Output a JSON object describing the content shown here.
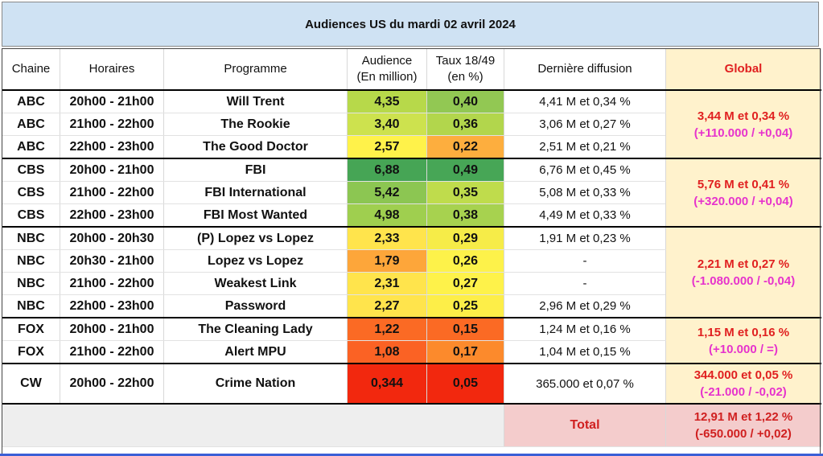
{
  "title": "Audiences US du mardi 02 avril 2024",
  "headers": {
    "chaine": "Chaine",
    "horaires": "Horaires",
    "programme": "Programme",
    "audience_l1": "Audience",
    "audience_l2": "(En million)",
    "taux_l1": "Taux 18/49",
    "taux_l2": "(en %)",
    "derniere": "Dernière diffusion",
    "global": "Global"
  },
  "rows": [
    {
      "chaine": "ABC",
      "horaires": "20h00 - 21h00",
      "programme": "Will Trent",
      "audience": "4,35",
      "taux": "0,40",
      "derniere": "4,41 M et 0,34 %"
    },
    {
      "chaine": "ABC",
      "horaires": "21h00 - 22h00",
      "programme": "The Rookie",
      "audience": "3,40",
      "taux": "0,36",
      "derniere": "3,06 M et 0,27 %"
    },
    {
      "chaine": "ABC",
      "horaires": "22h00 - 23h00",
      "programme": "The Good Doctor",
      "audience": "2,57",
      "taux": "0,22",
      "derniere": "2,51 M et 0,21 %"
    },
    {
      "chaine": "CBS",
      "horaires": "20h00 - 21h00",
      "programme": "FBI",
      "audience": "6,88",
      "taux": "0,49",
      "derniere": "6,76 M et 0,45 %"
    },
    {
      "chaine": "CBS",
      "horaires": "21h00 - 22h00",
      "programme": "FBI International",
      "audience": "5,42",
      "taux": "0,35",
      "derniere": "5,08 M et 0,33 %"
    },
    {
      "chaine": "CBS",
      "horaires": "22h00 - 23h00",
      "programme": "FBI Most Wanted",
      "audience": "4,98",
      "taux": "0,38",
      "derniere": "4,49 M et 0,33 %"
    },
    {
      "chaine": "NBC",
      "horaires": "20h00 - 20h30",
      "programme": "(P) Lopez vs Lopez",
      "audience": "2,33",
      "taux": "0,29",
      "derniere": "1,91 M et 0,23 %"
    },
    {
      "chaine": "NBC",
      "horaires": "20h30 - 21h00",
      "programme": "Lopez vs Lopez",
      "audience": "1,79",
      "taux": "0,26",
      "derniere": "-"
    },
    {
      "chaine": "NBC",
      "horaires": "21h00 - 22h00",
      "programme": "Weakest Link",
      "audience": "2,31",
      "taux": "0,27",
      "derniere": "-"
    },
    {
      "chaine": "NBC",
      "horaires": "22h00 - 23h00",
      "programme": "Password",
      "audience": "2,27",
      "taux": "0,25",
      "derniere": "2,96 M et 0,29 %"
    },
    {
      "chaine": "FOX",
      "horaires": "20h00 - 21h00",
      "programme": "The Cleaning Lady",
      "audience": "1,22",
      "taux": "0,15",
      "derniere": "1,24 M et 0,16 %"
    },
    {
      "chaine": "FOX",
      "horaires": "21h00 - 22h00",
      "programme": "Alert MPU",
      "audience": "1,08",
      "taux": "0,17",
      "derniere": "1,04 M et 0,15 %"
    },
    {
      "chaine": "CW",
      "horaires": "20h00 - 22h00",
      "programme": "Crime Nation",
      "audience": "0,344",
      "taux": "0,05",
      "derniere": "365.000 et 0,07 %"
    }
  ],
  "global": [
    {
      "main": "3,44 M et 0,34 %",
      "diff": "(+110.000 / +0,04)"
    },
    {
      "main": "5,76 M et 0,41 %",
      "diff": "(+320.000 / +0,04)"
    },
    {
      "main": "2,21 M et 0,27 %",
      "diff": "(-1.080.000 / -0,04)"
    },
    {
      "main": "1,15 M et 0,16 %",
      "diff": "(+10.000 / =)"
    },
    {
      "main": "344.000 et 0,05 %",
      "diff": "(-21.000 / -0,02)"
    }
  ],
  "total": {
    "label": "Total",
    "main": "12,91 M et 1,22 %",
    "diff": "(-650.000 / +0,02)"
  },
  "colors": {
    "audience": [
      "#b7d94a",
      "#cde24e",
      "#fff24a",
      "#46a555",
      "#8cc652",
      "#9fcf4f",
      "#ffe44c",
      "#fda63a",
      "#ffe44c",
      "#ffe44c",
      "#fb6a24",
      "#fb6224",
      "#f2280e"
    ],
    "taux": [
      "#92c853",
      "#b2d64c",
      "#fdae3e",
      "#47a656",
      "#bfdc4c",
      "#a7d24f",
      "#f6ec48",
      "#fdf24a",
      "#fef24a",
      "#fdee48",
      "#fb6a24",
      "#fc8a2c",
      "#f2280e"
    ],
    "global_bg": "#fff2cc",
    "total_bg": "#f4cccc",
    "header_bg": "#cfe2f3"
  }
}
